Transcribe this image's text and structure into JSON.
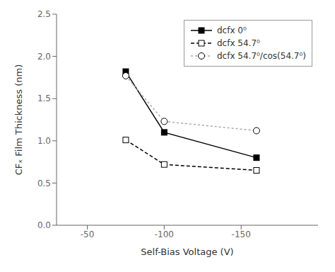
{
  "chart_data": {
    "type": "line",
    "x": [
      -75,
      -100,
      -160
    ],
    "series": [
      {
        "name": "dcfx 0⁰",
        "color": "black",
        "marker": "filled_square",
        "line_style": "solid",
        "values": [
          1.82,
          1.1,
          0.8
        ]
      },
      {
        "name": "dcfx 54.7⁰",
        "color": "black",
        "marker": "open_square",
        "line_style": "dashed",
        "values": [
          1.01,
          0.72,
          0.65
        ]
      },
      {
        "name": "dcfx 54.7⁰/cos(54.7⁰)",
        "color": "darkgray",
        "marker": "open_circle",
        "line_style": "dashed",
        "values": [
          1.77,
          1.23,
          1.12
        ]
      }
    ],
    "xlabel": "Self-Bias Voltage (V)",
    "ylabel": "CFₓ Film Thickness (nm)",
    "xlim": [
      -30,
      -200
    ],
    "ylim": [
      0,
      2.5
    ],
    "xticks": [
      -50,
      -100,
      -150
    ],
    "yticks": [
      {
        "value": 0,
        "label": "0.0"
      },
      0.5,
      {
        "value": 1,
        "label": "1.0"
      },
      1.5,
      {
        "value": 2,
        "label": "2.0"
      },
      2.5
    ],
    "grid": false,
    "legend": "upper right"
  }
}
